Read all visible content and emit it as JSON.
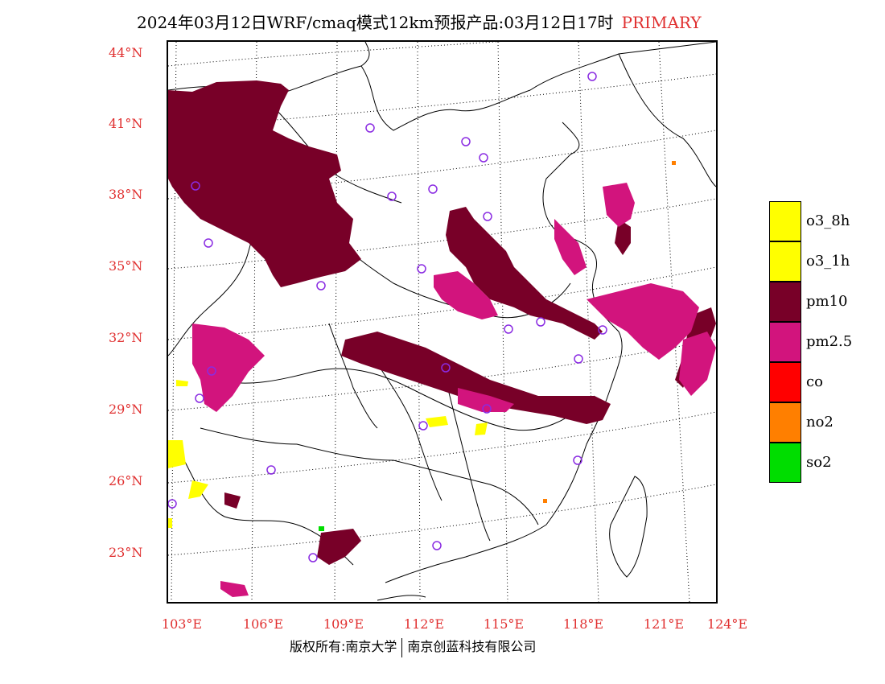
{
  "title": {
    "text": "2024年03月12日WRF/cmaq模式12km预报产品:03月12日17时",
    "tag": "PRIMARY",
    "tag_color": "#e03030"
  },
  "axes": {
    "label_color": "#e03030",
    "lat_labels": [
      "44°N",
      "41°N",
      "38°N",
      "35°N",
      "32°N",
      "29°N",
      "26°N",
      "23°N"
    ],
    "lon_labels": [
      "103°E",
      "106°E",
      "109°E",
      "112°E",
      "115°E",
      "118°E",
      "121°E",
      "124°E"
    ]
  },
  "legend": [
    {
      "label": "o3_8h",
      "color": "#ffff00"
    },
    {
      "label": "o3_1h",
      "color": "#ffff00"
    },
    {
      "label": "pm10",
      "color": "#780028"
    },
    {
      "label": "pm2.5",
      "color": "#d2147d"
    },
    {
      "label": "co",
      "color": "#ff0000"
    },
    {
      "label": "no2",
      "color": "#ff7f00"
    },
    {
      "label": "so2",
      "color": "#00dd00"
    }
  ],
  "footer": {
    "left": "版权所有:南京大学",
    "right": "南京创蓝科技有限公司"
  }
}
